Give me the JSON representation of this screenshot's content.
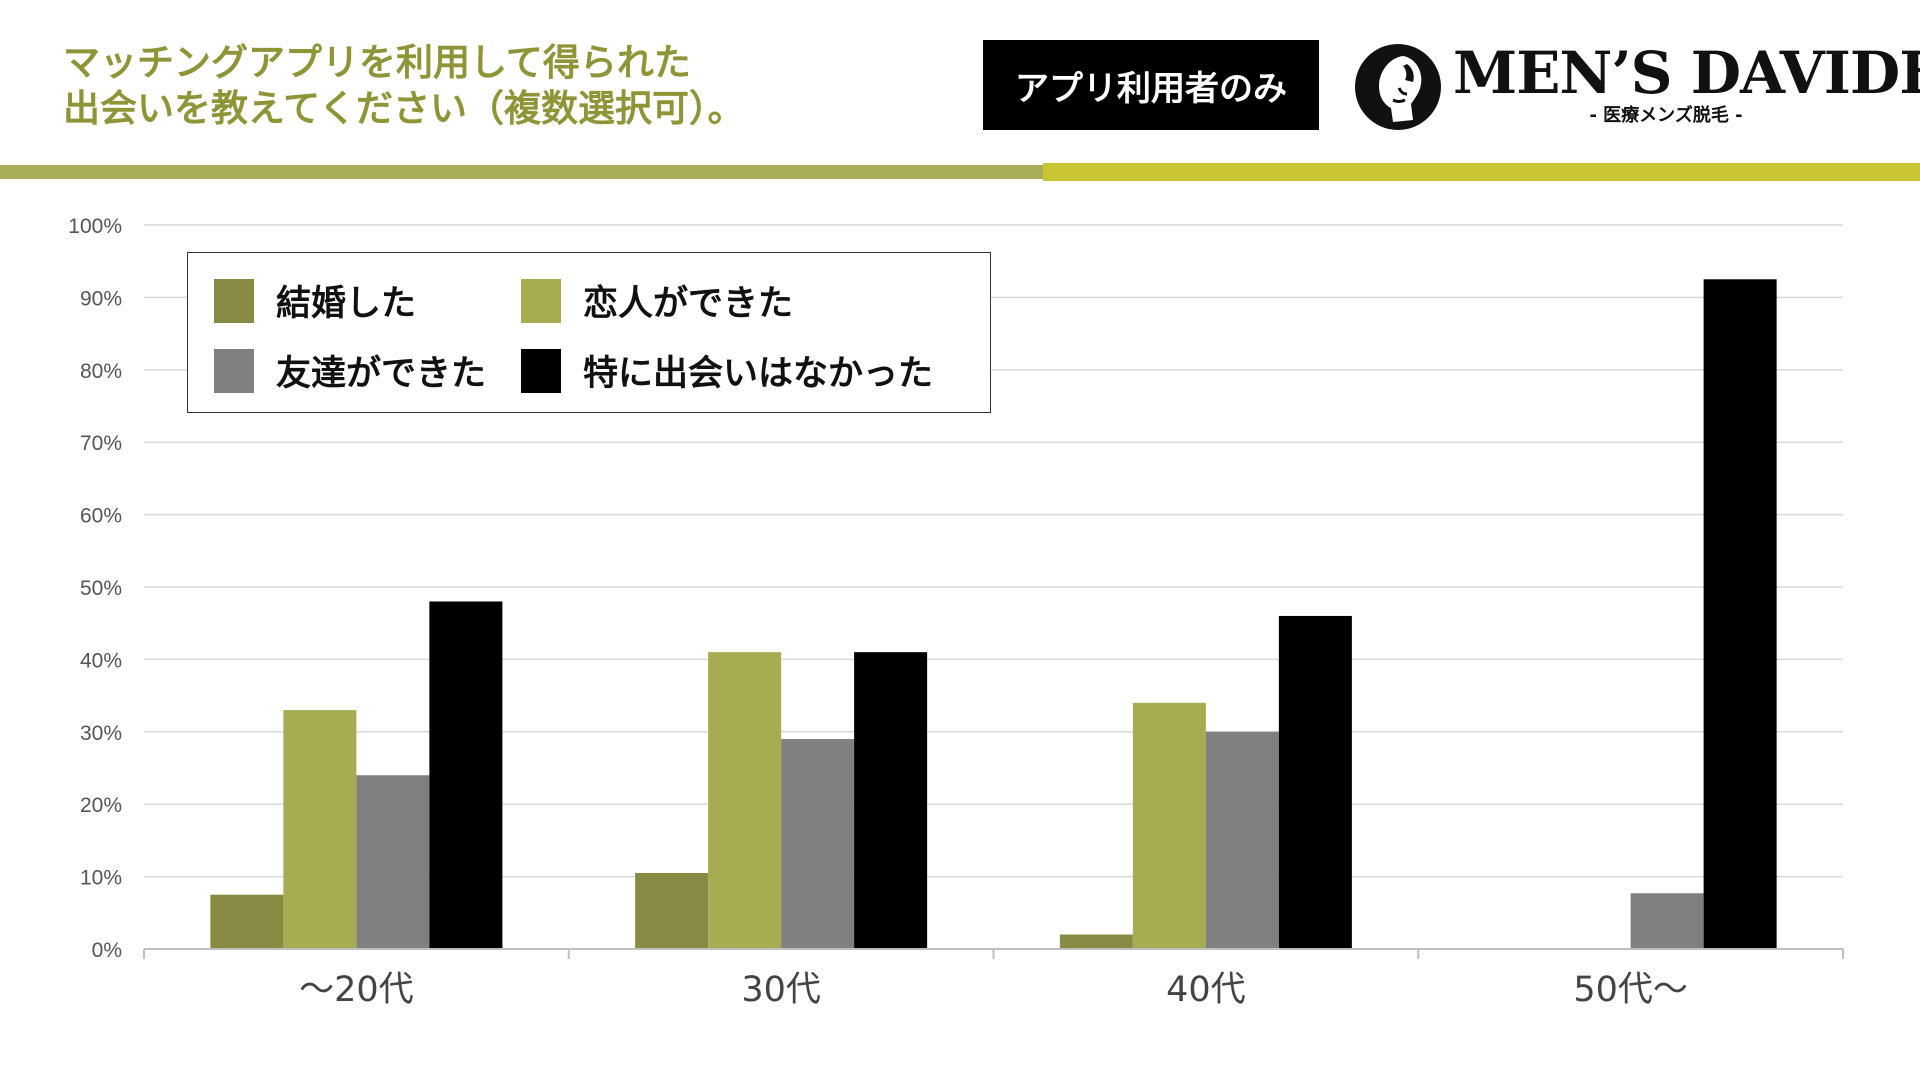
{
  "header": {
    "title_line1": "マッチングアプリを利用して得られた",
    "title_line2": "出会いを教えてください（複数選択可）。",
    "badge": "アプリ利用者のみ",
    "logo_name": "MEN’S DAVIDE",
    "logo_sub": "- 医療メンズ脱毛 -"
  },
  "colors": {
    "married": "#878a42",
    "partner": "#a7ab51",
    "friend": "#808080",
    "none": "#000000",
    "title": "#8f9437",
    "stripe_left": "#a9ad58",
    "stripe_right": "#c9c532",
    "grid": "#d9d9d9"
  },
  "chart_data": {
    "type": "bar",
    "title": "",
    "xlabel": "",
    "ylabel": "",
    "ylim": [
      0,
      100
    ],
    "y_tick_step": 10,
    "y_tick_suffix": "%",
    "grid": true,
    "legend_position": "top-left",
    "categories": [
      "～20代",
      "30代",
      "40代",
      "50代～"
    ],
    "series": [
      {
        "name": "結婚した",
        "color_key": "married",
        "values": [
          7.5,
          10.5,
          2,
          0
        ]
      },
      {
        "name": "恋人ができた",
        "color_key": "partner",
        "values": [
          33,
          41,
          34,
          0
        ]
      },
      {
        "name": "友達ができた",
        "color_key": "friend",
        "values": [
          24,
          29,
          30,
          7.7
        ]
      },
      {
        "name": "特に出会いはなかった",
        "color_key": "none",
        "values": [
          48,
          41,
          46,
          92.5
        ]
      }
    ]
  }
}
